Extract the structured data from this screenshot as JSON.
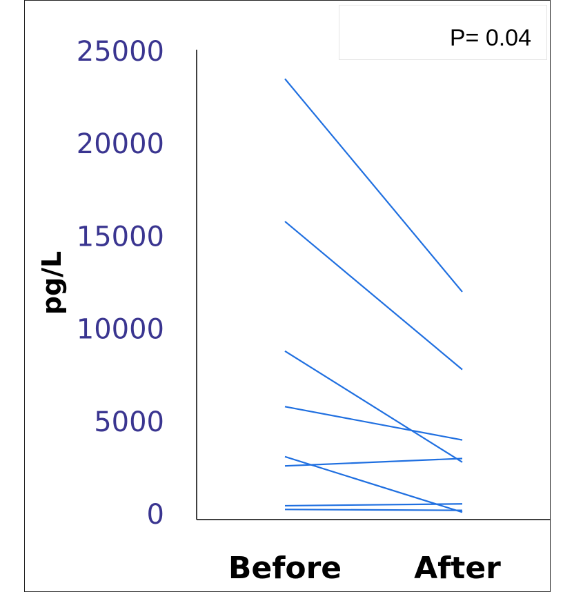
{
  "annotation": {
    "p_value": "P= 0.04"
  },
  "colors": {
    "line": "#1f6fe0",
    "tick_text": "#3a3590",
    "axis": "#000000"
  },
  "chart_data": {
    "type": "line",
    "title": "",
    "xlabel": "",
    "ylabel": "pg/L",
    "categories": [
      "Before",
      "After"
    ],
    "yticks": [
      0,
      5000,
      10000,
      15000,
      20000,
      25000
    ],
    "ylim": [
      0,
      25000
    ],
    "grid": false,
    "series": [
      {
        "values": [
          23500,
          12000
        ]
      },
      {
        "values": [
          15800,
          7800
        ]
      },
      {
        "values": [
          8800,
          2800
        ]
      },
      {
        "values": [
          5800,
          4000
        ]
      },
      {
        "values": [
          3100,
          100
        ]
      },
      {
        "values": [
          2600,
          3000
        ]
      },
      {
        "values": [
          450,
          550
        ]
      },
      {
        "values": [
          250,
          200
        ]
      }
    ]
  }
}
